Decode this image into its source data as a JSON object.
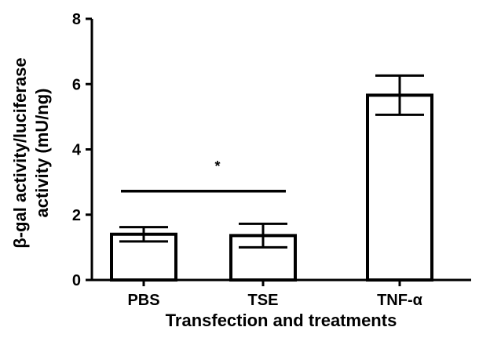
{
  "chart_data": {
    "type": "bar",
    "title": "",
    "xlabel": "Transfection and treatments",
    "ylabel_line1": "β-gal activity/luciferase",
    "ylabel_line2": "activity (mU/ng)",
    "ylim": [
      0,
      8
    ],
    "yticks": [
      0,
      2,
      4,
      6,
      8
    ],
    "categories": [
      "PBS",
      "TSE",
      "TNF-α"
    ],
    "values": [
      1.4,
      1.36,
      5.66
    ],
    "error_bars": [
      0.22,
      0.36,
      0.6
    ],
    "bar_fill": "#ffffff",
    "bar_stroke": "#000000",
    "significance": {
      "from": "PBS",
      "to": "TSE",
      "level": 2.72,
      "label": "*"
    },
    "grid": false,
    "legend": "none"
  }
}
